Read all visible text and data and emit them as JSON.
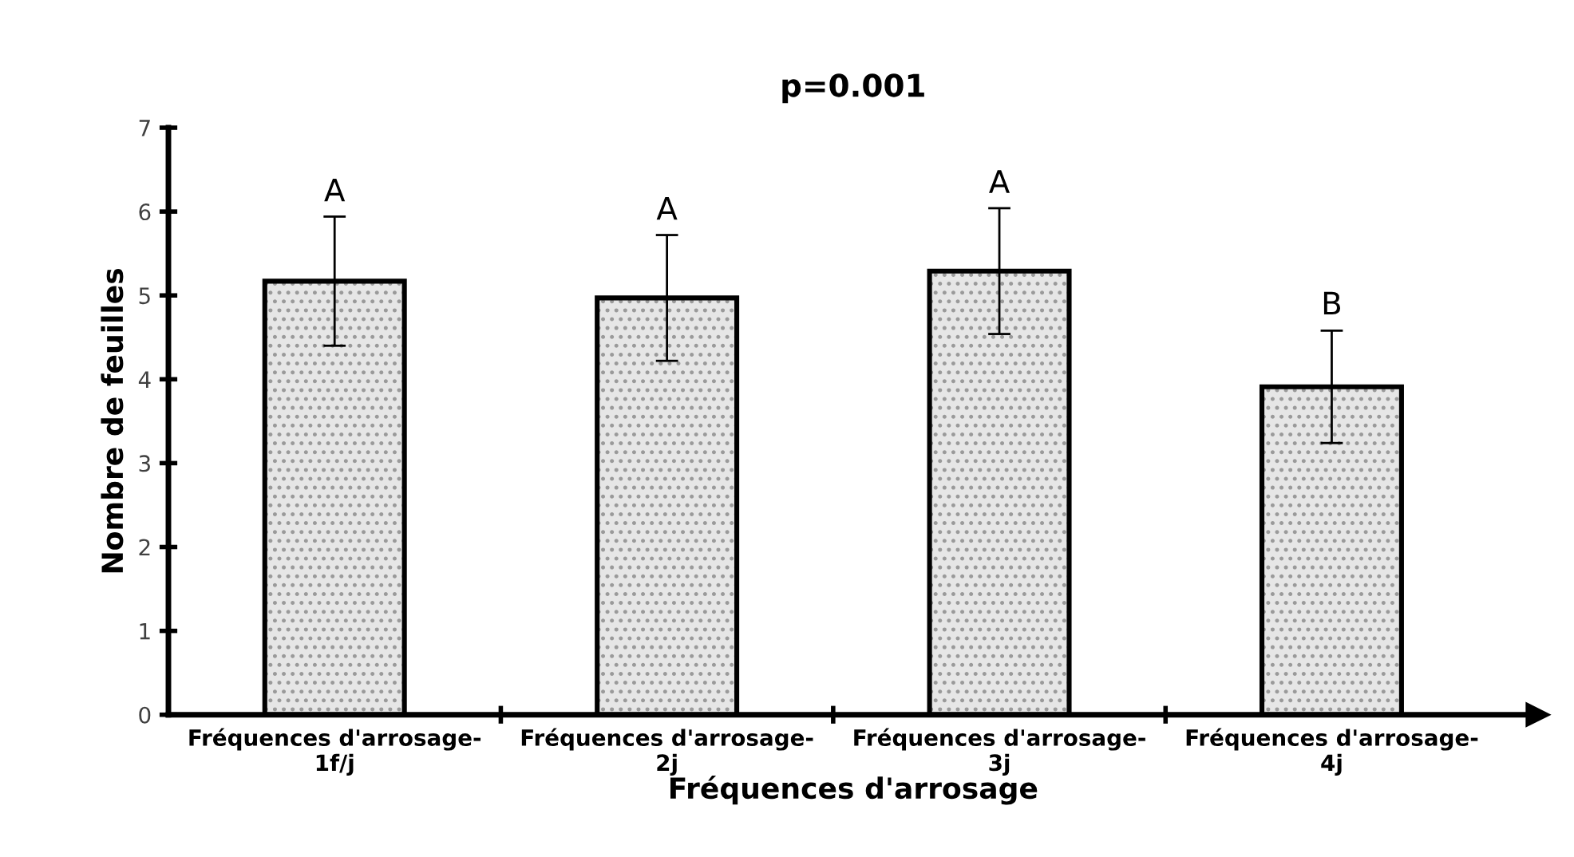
{
  "chart_data": {
    "type": "bar",
    "title": "p=0.001",
    "xlabel": "Fréquences d'arrosage",
    "ylabel": "Nombre de feuilles",
    "categories": [
      "Fréquences d'arrosage-\n1f/j",
      "Fréquences d'arrosage-\n2j",
      "Fréquences d'arrosage-\n3j",
      "Fréquences d'arrosage-\n4j"
    ],
    "values": [
      5.17,
      4.97,
      5.29,
      3.91
    ],
    "errors": [
      0.77,
      0.75,
      0.75,
      0.67
    ],
    "color": "#e6e6e6",
    "ylim": [
      0,
      7
    ],
    "yticks": [
      0,
      1,
      2,
      3,
      4,
      5,
      6,
      7
    ],
    "grid": false,
    "annotations": [
      {
        "text": "A",
        "x": "Fréquences d'arrosage-\n1f/j",
        "y": 5.94
      },
      {
        "text": "A",
        "x": "Fréquences d'arrosage-\n2j",
        "y": 5.72
      },
      {
        "text": "A",
        "x": "Fréquences d'arrosage-\n3j",
        "y": 6.04
      },
      {
        "text": "B",
        "x": "Fréquences d'arrosage-\n4j",
        "y": 4.59
      }
    ]
  }
}
